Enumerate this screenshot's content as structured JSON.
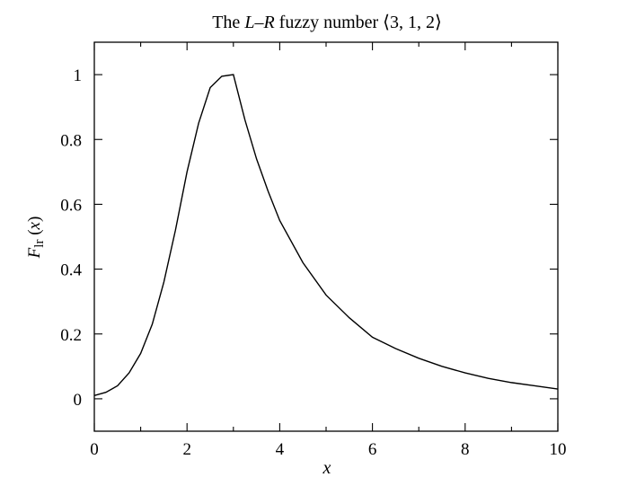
{
  "chart_data": {
    "type": "line",
    "title": {
      "prefix": "The ",
      "italic_a": "L",
      "dash": "–",
      "italic_b": "R",
      "suffix": " fuzzy number ⟨3, 1, 2⟩"
    },
    "xlabel": "x",
    "ylabel": {
      "italic": "F",
      "subscript": "lr",
      "arg_open": " (",
      "arg": "x",
      "arg_close": ")"
    },
    "xlim": [
      0,
      10
    ],
    "ylim": [
      -0.1,
      1.1
    ],
    "x_ticks": [
      0,
      2,
      4,
      6,
      8,
      10
    ],
    "x_tick_labels": [
      "0",
      "2",
      "4",
      "6",
      "8",
      "10"
    ],
    "x_minor_ticks": [
      1,
      3,
      5,
      7,
      9
    ],
    "y_ticks": [
      0,
      0.2,
      0.4,
      0.6,
      0.8,
      1
    ],
    "y_tick_labels": [
      "0",
      "0.2",
      "0.4",
      "0.6",
      "0.8",
      "1"
    ],
    "grid": false,
    "legend": "none",
    "series": [
      {
        "x": [
          0,
          0.25,
          0.5,
          0.75,
          1.0,
          1.25,
          1.5,
          1.75,
          2.0,
          2.25,
          2.5,
          2.75,
          3.0,
          3.25,
          3.5,
          3.75,
          4.0,
          4.5,
          5.0,
          5.5,
          6.0,
          6.5,
          7.0,
          7.5,
          8.0,
          8.5,
          9.0,
          9.5,
          10.0
        ],
        "y": [
          0.01,
          0.02,
          0.04,
          0.08,
          0.14,
          0.23,
          0.36,
          0.52,
          0.7,
          0.85,
          0.96,
          0.995,
          1.0,
          0.86,
          0.74,
          0.64,
          0.55,
          0.42,
          0.32,
          0.25,
          0.19,
          0.155,
          0.125,
          0.1,
          0.08,
          0.063,
          0.05,
          0.04,
          0.03
        ]
      }
    ]
  }
}
